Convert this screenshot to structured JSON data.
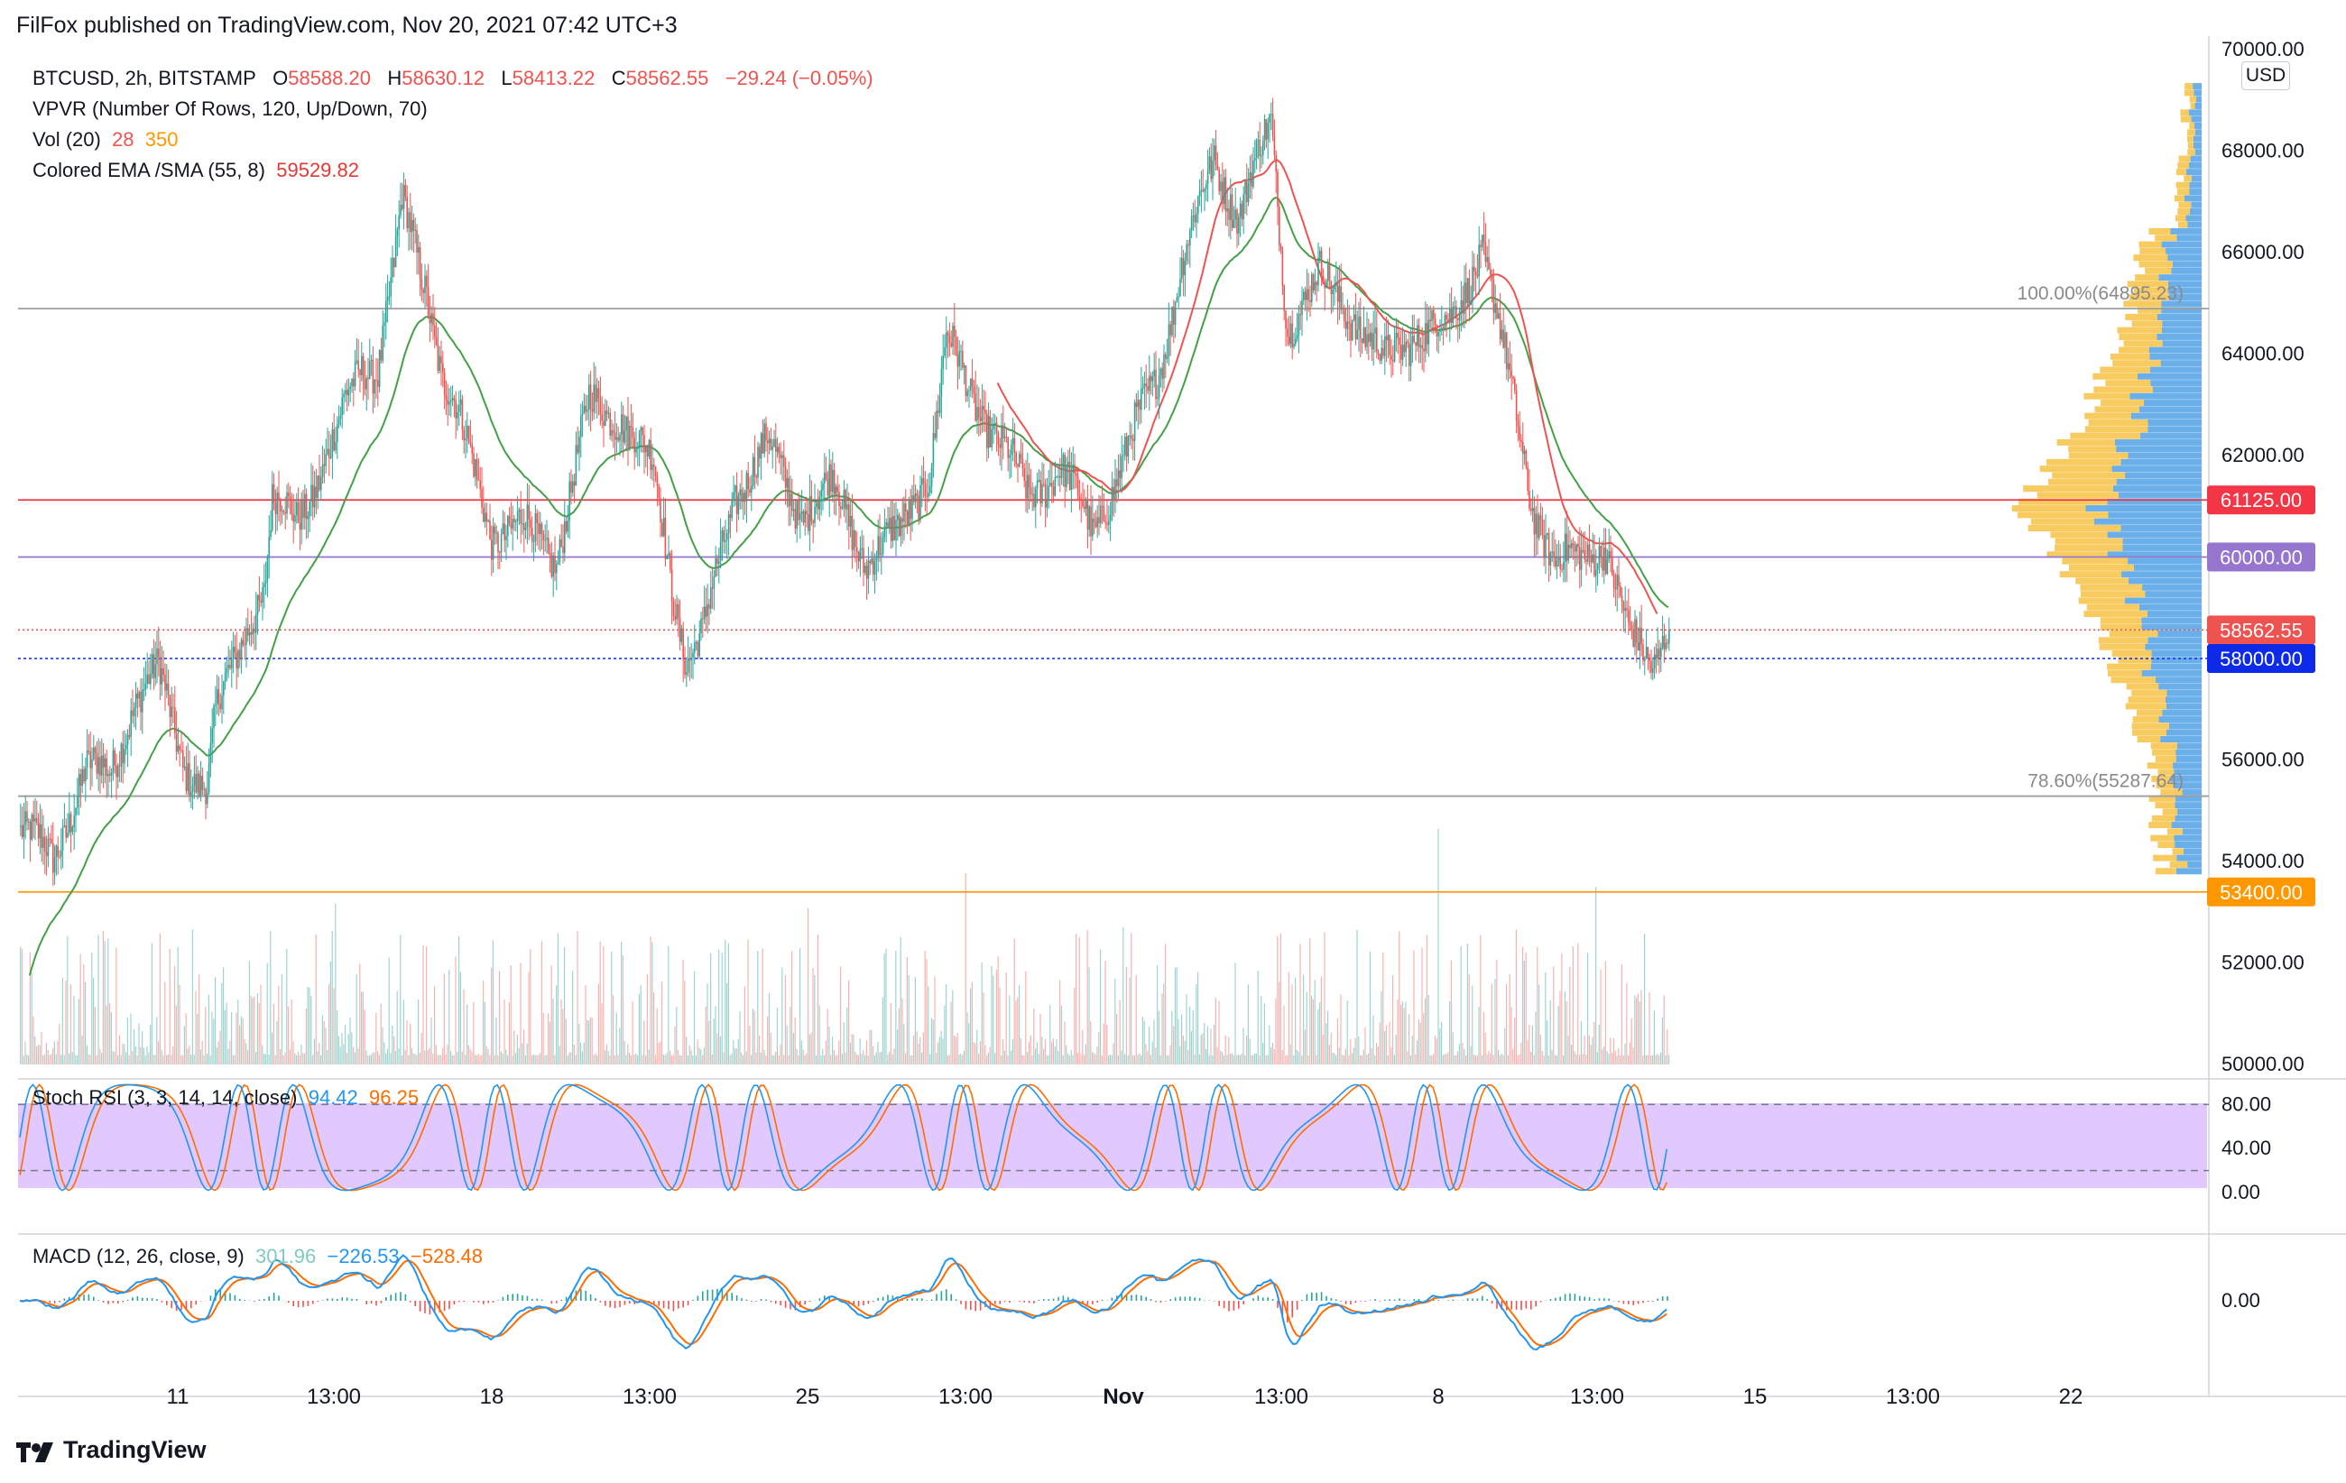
{
  "header": {
    "published_by": "FilFox published on TradingView.com, Nov 20, 2021 07:42 UTC+3"
  },
  "legend": {
    "symbol": "BTCUSD, 2h, BITSTAMP",
    "o_label": "O",
    "o_value": "58588.20",
    "h_label": "H",
    "h_value": "58630.12",
    "l_label": "L",
    "l_value": "58413.22",
    "c_label": "C",
    "c_value": "58562.55",
    "change": "−29.24 (−0.05%)",
    "vpvr": "VPVR (Number Of Rows, 120, Up/Down, 70)",
    "vol_label": "Vol (20)",
    "vol_value1": "28",
    "vol_value2": "350",
    "ema_label": "Colored EMA /SMA (55, 8)",
    "ema_value": "59529.82"
  },
  "currency": "USD",
  "stoch": {
    "label": "Stoch RSI (3, 3, 14, 14, close)",
    "k": "94.42",
    "d": "96.25",
    "ticks": [
      "80.00",
      "40.00",
      "0.00"
    ]
  },
  "macd": {
    "label": "MACD (12, 26, close, 9)",
    "hist": "301.96",
    "macd": "−226.53",
    "signal": "−528.48",
    "ticks": [
      "0.00"
    ]
  },
  "brand": "TradingView",
  "colors": {
    "up": "#26a69a",
    "down": "#ef5350",
    "ema": "#43a047",
    "sma": "#ef5350",
    "stoch_band": "#e1c8ff",
    "vpvr_up": "#5aa6e8",
    "vpvr_down": "#f6c244"
  },
  "chart_data": {
    "type": "candlestick",
    "price_axis": {
      "ticks": [
        "70000.00",
        "68000.00",
        "66000.00",
        "64000.00",
        "62000.00",
        "60000.00",
        "58000.00",
        "56000.00",
        "54000.00",
        "52000.00",
        "50000.00"
      ],
      "range": [
        50000,
        70000
      ]
    },
    "x_ticks": [
      "11",
      "13:00",
      "18",
      "13:00",
      "25",
      "13:00",
      "Nov",
      "13:00",
      "8",
      "13:00",
      "15",
      "13:00",
      "22"
    ],
    "price_labels": [
      {
        "text": "61125.00",
        "value": 61125,
        "color": "#f23645"
      },
      {
        "text": "60000.00",
        "value": 60000,
        "color": "#9575cd"
      },
      {
        "text": "58562.55",
        "value": 58562.55,
        "color": "#ef5350"
      },
      {
        "text": "58000.00",
        "value": 58000,
        "color": "#0d2ae8"
      },
      {
        "text": "53400.00",
        "value": 53400,
        "color": "#ff9800"
      }
    ],
    "fib_levels": [
      {
        "text": "100.00%(64895.23)",
        "value": 64895.23
      },
      {
        "text": "78.60%(55287.64)",
        "value": 55287.64
      }
    ],
    "close_anchors": [
      [
        0,
        54600
      ],
      [
        20,
        54100
      ],
      [
        40,
        55800
      ],
      [
        55,
        55700
      ],
      [
        70,
        57200
      ],
      [
        85,
        57700
      ],
      [
        100,
        56000
      ],
      [
        115,
        55400
      ],
      [
        120,
        56800
      ],
      [
        130,
        57800
      ],
      [
        140,
        58800
      ],
      [
        150,
        59300
      ],
      [
        155,
        61000
      ],
      [
        170,
        60800
      ],
      [
        185,
        61700
      ],
      [
        195,
        62400
      ],
      [
        200,
        63000
      ],
      [
        210,
        63800
      ],
      [
        220,
        63800
      ],
      [
        230,
        65700
      ],
      [
        235,
        66900
      ],
      [
        250,
        65300
      ],
      [
        260,
        63600
      ],
      [
        270,
        62700
      ],
      [
        290,
        60500
      ],
      [
        310,
        60600
      ],
      [
        330,
        60000
      ],
      [
        350,
        63000
      ],
      [
        370,
        62800
      ],
      [
        390,
        61700
      ],
      [
        400,
        59700
      ],
      [
        410,
        58000
      ],
      [
        420,
        58400
      ],
      [
        440,
        61300
      ],
      [
        460,
        62200
      ],
      [
        480,
        60900
      ],
      [
        500,
        61400
      ],
      [
        520,
        60000
      ],
      [
        540,
        60400
      ],
      [
        560,
        61800
      ],
      [
        570,
        64300
      ],
      [
        585,
        63200
      ],
      [
        600,
        62500
      ],
      [
        620,
        61200
      ],
      [
        640,
        61800
      ],
      [
        660,
        60500
      ],
      [
        680,
        62000
      ],
      [
        700,
        63600
      ],
      [
        715,
        65800
      ],
      [
        735,
        67800
      ],
      [
        750,
        66800
      ],
      [
        770,
        68500
      ],
      [
        780,
        64600
      ],
      [
        800,
        65500
      ],
      [
        820,
        64800
      ],
      [
        840,
        63800
      ],
      [
        860,
        64500
      ],
      [
        880,
        64500
      ],
      [
        900,
        66200
      ],
      [
        915,
        63700
      ],
      [
        930,
        61200
      ],
      [
        945,
        59800
      ],
      [
        960,
        60000
      ],
      [
        975,
        60300
      ],
      [
        990,
        58400
      ],
      [
        1005,
        58000
      ],
      [
        1015,
        58800
      ]
    ],
    "series": [
      {
        "name": "EMA 55",
        "values_desc": "rises from 50900 to 65600 then falls to 59500"
      },
      {
        "name": "SMA 8",
        "values_desc": "tracks price"
      }
    ],
    "stoch_band": [
      20,
      80
    ],
    "stoch_ylim": [
      0,
      100
    ],
    "macd_ylim": [
      -1200,
      1200
    ]
  }
}
